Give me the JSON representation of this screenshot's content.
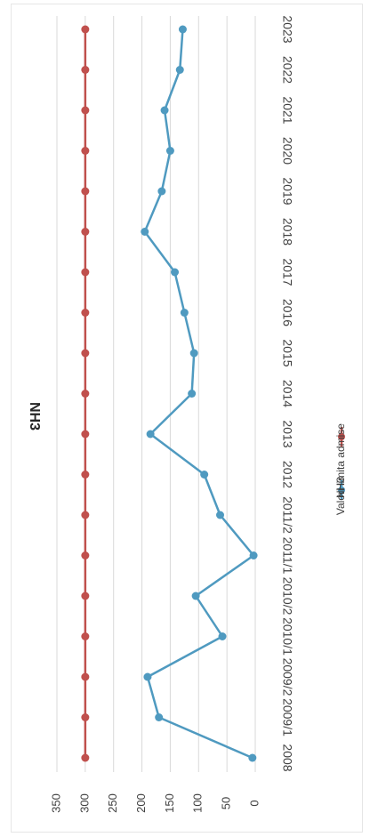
{
  "chart_data": {
    "type": "line",
    "title": "NH3",
    "orientation": "rotated-90-clockwise",
    "categories": [
      "2008",
      "2009/1",
      "2009/2",
      "2010/1",
      "2010/2",
      "2011/1",
      "2011/2",
      "2012",
      "2013",
      "2014",
      "2015",
      "2016",
      "2017",
      "2018",
      "2019",
      "2020",
      "2021",
      "2022",
      "2023"
    ],
    "ylim": [
      0,
      350
    ],
    "yticks": [
      0,
      50,
      100,
      150,
      200,
      250,
      300,
      350
    ],
    "grid": true,
    "legend_position": "bottom",
    "series": [
      {
        "name": "NH3",
        "color": "#4f9ac0",
        "values": [
          5,
          170,
          190,
          58,
          105,
          3,
          62,
          90,
          185,
          112,
          108,
          125,
          142,
          195,
          165,
          150,
          160,
          133,
          128
        ]
      },
      {
        "name": "Valori limita admise",
        "color": "#c0504d",
        "values": [
          300,
          300,
          300,
          300,
          300,
          300,
          300,
          300,
          300,
          300,
          300,
          300,
          300,
          300,
          300,
          300,
          300,
          300,
          300
        ]
      }
    ]
  }
}
